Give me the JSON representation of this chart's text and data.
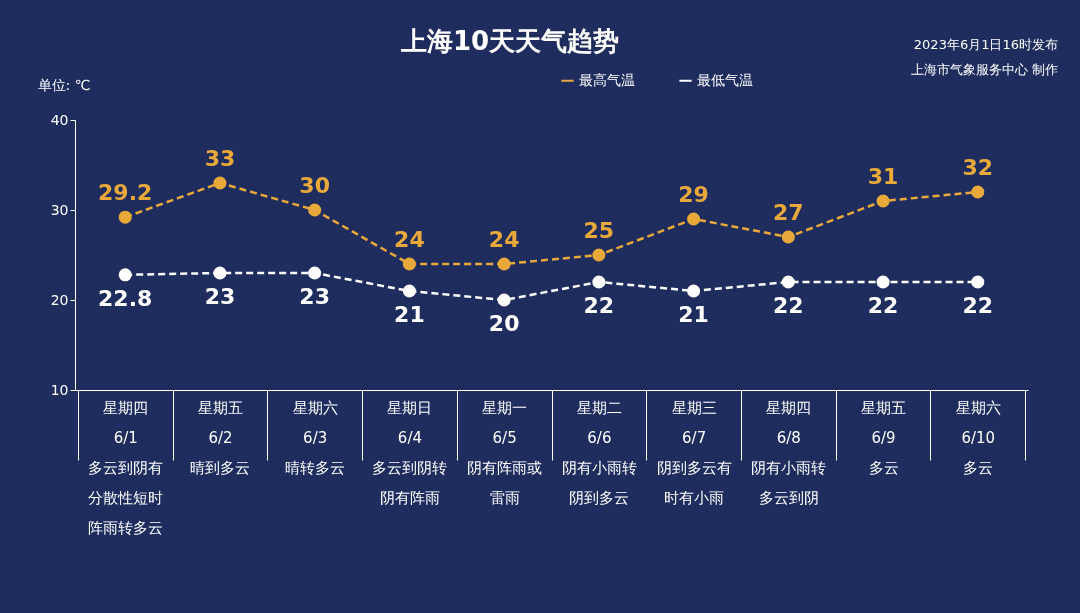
{
  "chart_data": {
    "type": "line",
    "title": "上海10天天气趋势",
    "ylabel": "单位: ℃",
    "annotations": [
      "2023年6月1日16时发布",
      "上海市气象服务中心 制作"
    ],
    "categories": [
      "星期四\n6/1\n多云到阴有分散性短时阵雨转多云",
      "星期五\n6/2\n晴到多云",
      "星期六\n6/3\n晴转多云",
      "星期日\n6/4\n多云到阴转阴有阵雨",
      "星期一\n6/5\n阴有阵雨或雷雨",
      "星期二\n6/6\n阴有小雨转阴到多云",
      "星期三\n6/7\n阴到多云有时有小雨",
      "星期四\n6/8\n阴有小雨转多云到阴",
      "星期五\n6/9\n多云",
      "星期六\n6/10\n多云"
    ],
    "series": [
      {
        "name": "最高气温",
        "color": "#e9a93a",
        "values": [
          29.2,
          33,
          30,
          24,
          24,
          25,
          29,
          27,
          31,
          32
        ]
      },
      {
        "name": "最低气温",
        "color": "#ffffff",
        "values": [
          22.8,
          23,
          23,
          21,
          20,
          22,
          21,
          22,
          22,
          22
        ]
      }
    ],
    "ylim": [
      10,
      40
    ],
    "yticks": [
      10,
      20,
      30,
      40
    ],
    "grid": false,
    "legend": "top right",
    "marker": "circle",
    "line_style": "dashed",
    "data_labels": true
  }
}
